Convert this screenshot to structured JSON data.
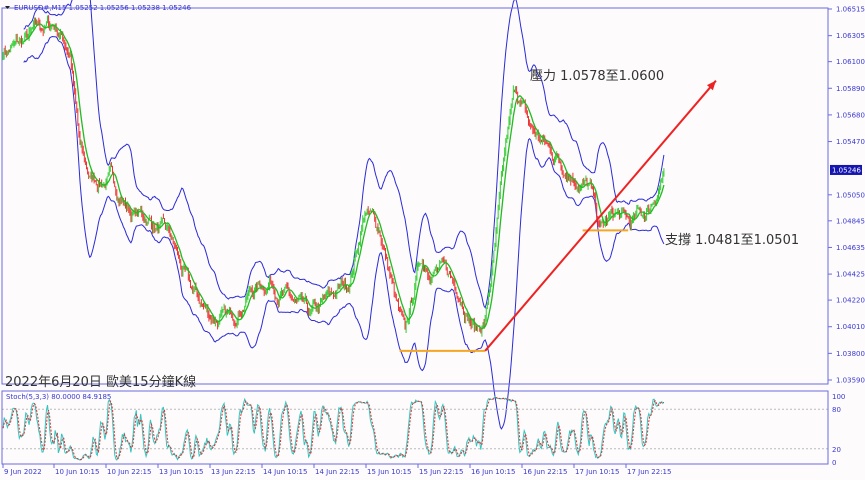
{
  "chart_data": {
    "type": "candlestick",
    "symbol_header": "EURUSD#,M15  1.05252 1.05256 1.05238 1.05246",
    "current_price": "1.05246",
    "ylim": [
      1.0359,
      1.06515
    ],
    "price_ticks": [
      "1.06515",
      "1.06305",
      "1.06100",
      "1.05890",
      "1.05680",
      "1.05470",
      "1.05050",
      "1.04845",
      "1.04635",
      "1.04425",
      "1.04220",
      "1.04010",
      "1.03800",
      "1.03590"
    ],
    "time_labels": [
      {
        "label": "9 Jun 2022",
        "t": "9 22:30"
      },
      {
        "label": "10 Jun 10:15",
        "t": "10 10:15"
      },
      {
        "label": "10 Jun 22:15",
        "t": "10 22:15"
      },
      {
        "label": "13 Jun 10:15",
        "t": "13 10:15"
      },
      {
        "label": "13 Jun 22:15",
        "t": "13 22:15"
      },
      {
        "label": "14 Jun 10:15",
        "t": "14 10:15"
      },
      {
        "label": "14 Jun 22:15",
        "t": "14 22:15"
      },
      {
        "label": "15 Jun 10:15",
        "t": "15 10:15"
      },
      {
        "label": "15 Jun 22:15",
        "t": "15 22:15"
      },
      {
        "label": "16 Jun 10:15",
        "t": "16 10:15"
      },
      {
        "label": "16 Jun 22:15",
        "t": "16 22:15"
      },
      {
        "label": "17 Jun 10:15",
        "t": "17 10:15"
      },
      {
        "label": "17 Jun 22:15",
        "t": "17 22:15"
      }
    ],
    "price_path": [
      [
        "9 22:30",
        1.0619
      ],
      [
        "10 02:30",
        1.0623
      ],
      [
        "10 07:00",
        1.0635
      ],
      [
        "10 10:30",
        1.0639
      ],
      [
        "10 14:00",
        1.0619
      ],
      [
        "10 16:15",
        1.054
      ],
      [
        "10 18:30",
        1.0517
      ],
      [
        "10 23:15",
        1.0517
      ],
      [
        "13 03:45",
        1.0493
      ],
      [
        "13 08:30",
        1.0485
      ],
      [
        "13 13:00",
        1.047
      ],
      [
        "13 17:30",
        1.043
      ],
      [
        "13 22:15",
        1.041
      ],
      [
        "14 02:45",
        1.0406
      ],
      [
        "14 07:30",
        1.043
      ],
      [
        "14 12:15",
        1.0438
      ],
      [
        "14 16:45",
        1.0422
      ],
      [
        "14 21:15",
        1.0406
      ],
      [
        "15 02:00",
        1.0422
      ],
      [
        "15 06:30",
        1.0438
      ],
      [
        "15 10:00",
        1.0493
      ],
      [
        "15 13:30",
        1.0477
      ],
      [
        "15 17:00",
        1.0422
      ],
      [
        "15 19:15",
        1.0391
      ],
      [
        "15 22:45",
        1.0454
      ],
      [
        "16 03:30",
        1.0446
      ],
      [
        "16 08:00",
        1.043
      ],
      [
        "16 11:30",
        1.0399
      ],
      [
        "16 13:45",
        1.0406
      ],
      [
        "16 16:00",
        1.0462
      ],
      [
        "16 18:30",
        1.054
      ],
      [
        "16 20:45",
        1.0588
      ],
      [
        "17 00:15",
        1.0556
      ],
      [
        "17 04:45",
        1.054
      ],
      [
        "17 09:30",
        1.0525
      ],
      [
        "17 14:00",
        1.0509
      ],
      [
        "17 16:15",
        1.0477
      ],
      [
        "17 19:45",
        1.0489
      ],
      [
        "17 23:15",
        1.0481
      ],
      [
        "20 03:30",
        1.0493
      ],
      [
        "20 07:00",
        1.05246
      ]
    ],
    "indicators": {
      "bollinger": {
        "period": 20,
        "deviation": 2,
        "color": "#2b2bd8"
      },
      "moving_average": {
        "color": "#22bb22"
      },
      "stochastic": {
        "label": "Stoch(5,3,3) 80.0000 84.9185",
        "levels": [
          20,
          80
        ],
        "ticks": [
          "100",
          "80",
          "20",
          "0"
        ],
        "main_color": "#33c6c0",
        "signal_color": "#e03030"
      }
    },
    "colors": {
      "bull": "#33cc33",
      "bear": "#ee3333",
      "axis": "#3a3ad0"
    },
    "annotations": {
      "resistance": "壓力 1.0578至1.0600",
      "support": "支撐 1.0481至1.0501",
      "caption": "2022年6月20日 歐美15分鐘K線",
      "support_line_1": {
        "price": 1.0382,
        "from": "15 18:00",
        "to": "16 13:45",
        "color": "#f5a623"
      },
      "support_line_2": {
        "price": 1.0477,
        "from": "17 12:15",
        "to": "17 22:45",
        "color": "#f5a623"
      },
      "trend_arrow": {
        "from": [
          "16 13:45",
          1.0382
        ],
        "to": [
          "20 19:00",
          1.0595
        ],
        "color": "#ee2222"
      }
    }
  }
}
